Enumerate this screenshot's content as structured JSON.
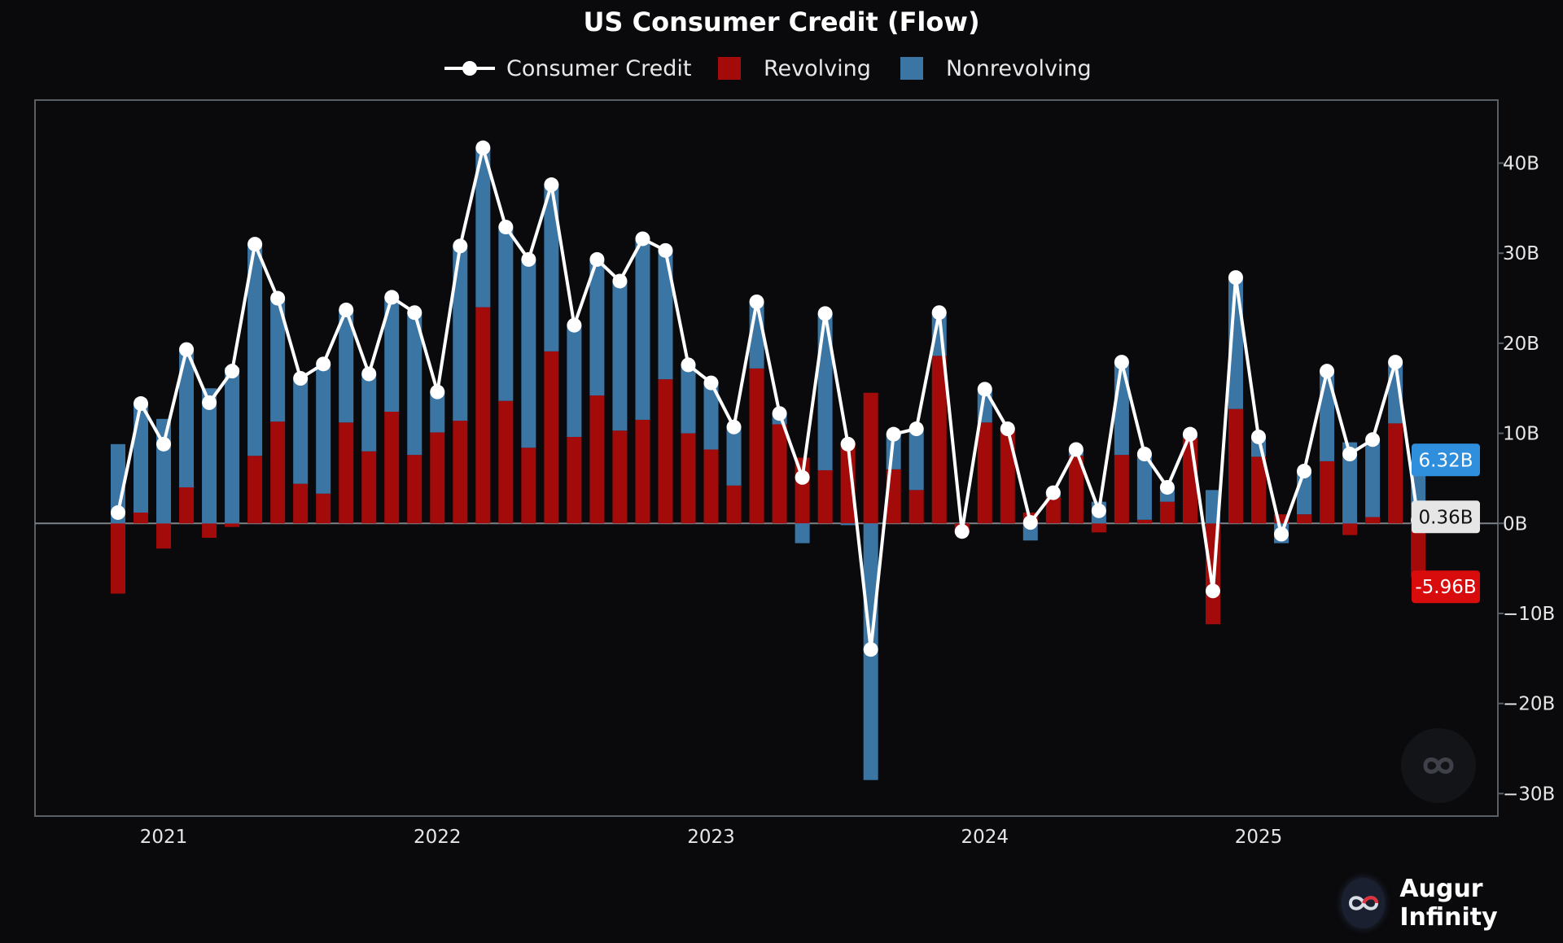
{
  "chart_data": {
    "type": "bar",
    "title": "US Consumer Credit (Flow)",
    "legend": [
      "Consumer Credit",
      "Revolving",
      "Nonrevolving"
    ],
    "legend_placement": "top-center",
    "yaxis_side": "right",
    "ylim": [
      -32.5,
      47
    ],
    "yticks": [
      40,
      30,
      20,
      10,
      0,
      -10,
      -20,
      -30
    ],
    "ytick_labels": [
      "40B",
      "30B",
      "20B",
      "10B",
      "0B",
      "−10B",
      "−20B",
      "−30B"
    ],
    "xtick_labels": [
      "2021",
      "2022",
      "2023",
      "2024",
      "2025"
    ],
    "xtick_index": [
      2.0,
      14.0,
      26.0,
      38.0,
      50.0
    ],
    "colors": {
      "consumer_credit": "#ffffff",
      "revolving": "#a30a0a",
      "nonrevolving": "#3a75a4"
    },
    "series": [
      {
        "name": "Consumer Credit",
        "values": [
          1.2,
          13.3,
          8.8,
          19.3,
          13.4,
          16.9,
          31.0,
          25.0,
          16.1,
          17.7,
          23.7,
          16.6,
          25.1,
          23.4,
          14.6,
          30.8,
          41.7,
          32.9,
          29.3,
          37.6,
          22.0,
          29.3,
          26.9,
          31.6,
          30.3,
          17.6,
          15.6,
          10.7,
          24.6,
          12.2,
          5.1,
          23.3,
          8.8,
          -14.0,
          9.9,
          10.5,
          23.4,
          -0.9,
          14.9,
          10.5,
          0.1,
          3.4,
          8.2,
          1.4,
          17.9,
          7.7,
          4.0,
          9.9,
          -7.5,
          27.3,
          9.6,
          -1.2,
          5.8,
          16.9,
          7.7,
          9.3,
          17.9,
          0.36
        ]
      },
      {
        "name": "Revolving",
        "values": [
          -7.8,
          1.2,
          -2.8,
          4.0,
          -1.6,
          -0.4,
          7.5,
          11.3,
          4.4,
          3.3,
          11.2,
          8.0,
          12.4,
          7.6,
          10.1,
          11.4,
          24.0,
          13.6,
          8.4,
          19.1,
          9.6,
          14.2,
          10.3,
          11.5,
          16.0,
          10.0,
          8.2,
          4.2,
          17.2,
          11.0,
          7.3,
          5.9,
          9.0,
          14.5,
          6.0,
          3.7,
          18.6,
          -0.9,
          11.2,
          10.5,
          1.2,
          2.9,
          7.5,
          -1.0,
          7.6,
          0.4,
          2.4,
          9.5,
          -11.2,
          12.7,
          7.4,
          1.0,
          1.0,
          6.9,
          -1.3,
          0.7,
          11.1,
          -5.96
        ]
      },
      {
        "name": "Nonrevolving",
        "values": [
          8.8,
          12.1,
          11.6,
          15.3,
          15.0,
          17.3,
          23.5,
          13.7,
          11.7,
          14.4,
          12.5,
          8.6,
          12.7,
          15.8,
          4.5,
          19.4,
          17.7,
          19.3,
          20.9,
          18.5,
          12.4,
          15.1,
          16.6,
          20.1,
          14.3,
          7.6,
          7.4,
          6.5,
          7.4,
          1.2,
          -2.2,
          17.4,
          -0.2,
          -28.5,
          3.9,
          6.8,
          4.8,
          0.0,
          3.7,
          0.0,
          -1.9,
          0.5,
          0.7,
          2.4,
          10.3,
          7.3,
          1.6,
          0.4,
          3.7,
          14.6,
          2.2,
          -2.2,
          4.8,
          10.0,
          9.0,
          8.6,
          6.8,
          6.32
        ]
      }
    ],
    "last_value_labels": [
      {
        "text": "6.32B",
        "series": "Nonrevolving",
        "color": "#2f8fdc",
        "text_color": "#ffffff"
      },
      {
        "text": "0.36B",
        "series": "Consumer Credit",
        "color": "#e6e6e6",
        "text_color": "#111111"
      },
      {
        "text": "-5.96B",
        "series": "Revolving",
        "color": "#d80c0c",
        "text_color": "#ffffff"
      }
    ]
  },
  "branding": {
    "name": "Augur Infinity"
  }
}
